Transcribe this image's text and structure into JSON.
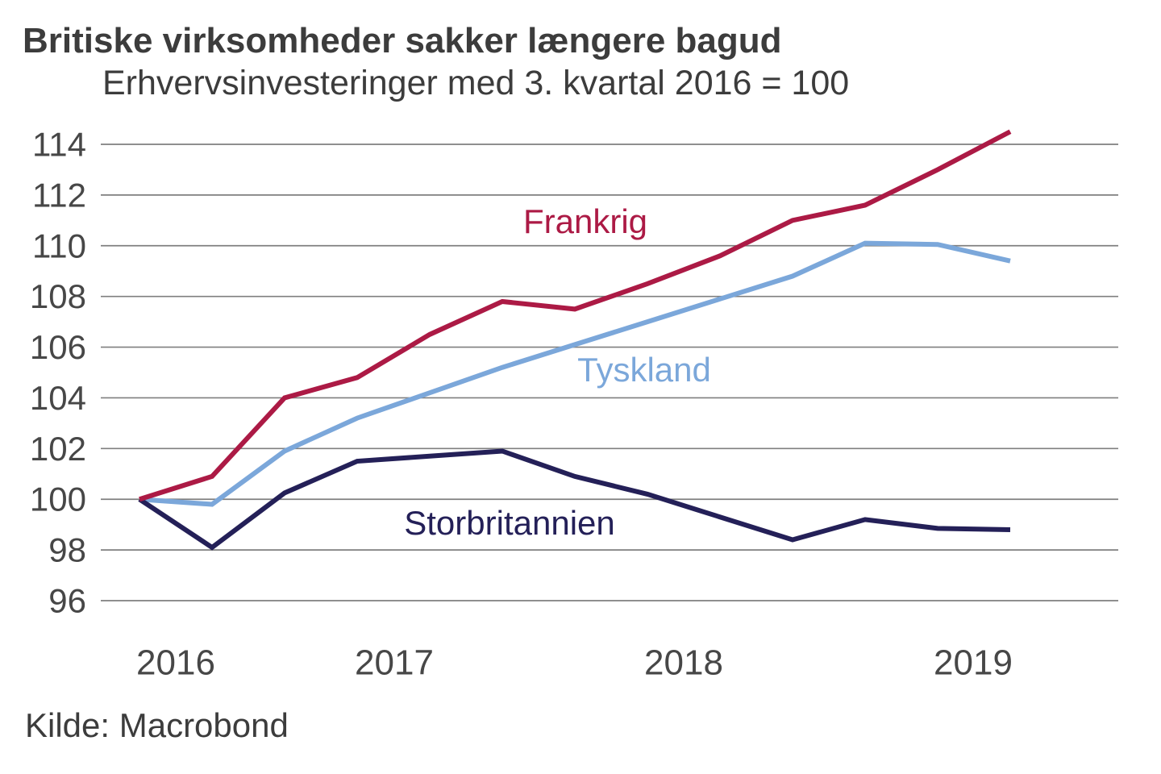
{
  "header": {
    "title": "Britiske virksomheder sakker længere bagud",
    "subtitle": "Erhvervsinvesteringer med 3. kvartal 2016 = 100"
  },
  "source_label": "Kilde: Macrobond",
  "colors": {
    "title_text": "#3c3c3c",
    "tick_text": "#474747",
    "gridline": "#7f7f7f",
    "background": "#ffffff"
  },
  "chart_data": {
    "type": "line",
    "title": "Britiske virksomheder sakker længere bagud",
    "subtitle": "Erhvervsinvesteringer med 3. kvartal 2016 = 100",
    "source": "Kilde: Macrobond",
    "x": [
      "2016 Q3",
      "2016 Q4",
      "2017 Q1",
      "2017 Q2",
      "2017 Q3",
      "2017 Q4",
      "2018 Q1",
      "2018 Q2",
      "2018 Q3",
      "2018 Q4",
      "2019 Q1",
      "2019 Q2",
      "2019 Q3"
    ],
    "x_tick_labels": [
      "2016",
      "2017",
      "2018",
      "2019"
    ],
    "y_ticks": [
      96,
      98,
      100,
      102,
      104,
      106,
      108,
      110,
      112,
      114
    ],
    "ylim": [
      96,
      114
    ],
    "grid": "horizontal",
    "legend_position": "inline-labels",
    "series": [
      {
        "name": "Tyskland",
        "color": "#7ba7da",
        "values": [
          100.0,
          99.8,
          101.9,
          103.2,
          104.2,
          105.2,
          106.1,
          107.0,
          107.9,
          108.8,
          110.1,
          110.05,
          109.4
        ]
      },
      {
        "name": "Storbritannien",
        "color": "#242058",
        "values": [
          100.0,
          98.1,
          100.25,
          101.5,
          101.7,
          101.9,
          100.9,
          100.2,
          99.3,
          98.4,
          99.2,
          98.85,
          98.8
        ]
      },
      {
        "name": "Frankrig",
        "color": "#ac1a45",
        "values": [
          100.0,
          100.9,
          104.0,
          104.8,
          106.5,
          107.8,
          107.5,
          108.5,
          109.6,
          111.0,
          111.6,
          113.0,
          114.5
        ]
      }
    ]
  }
}
